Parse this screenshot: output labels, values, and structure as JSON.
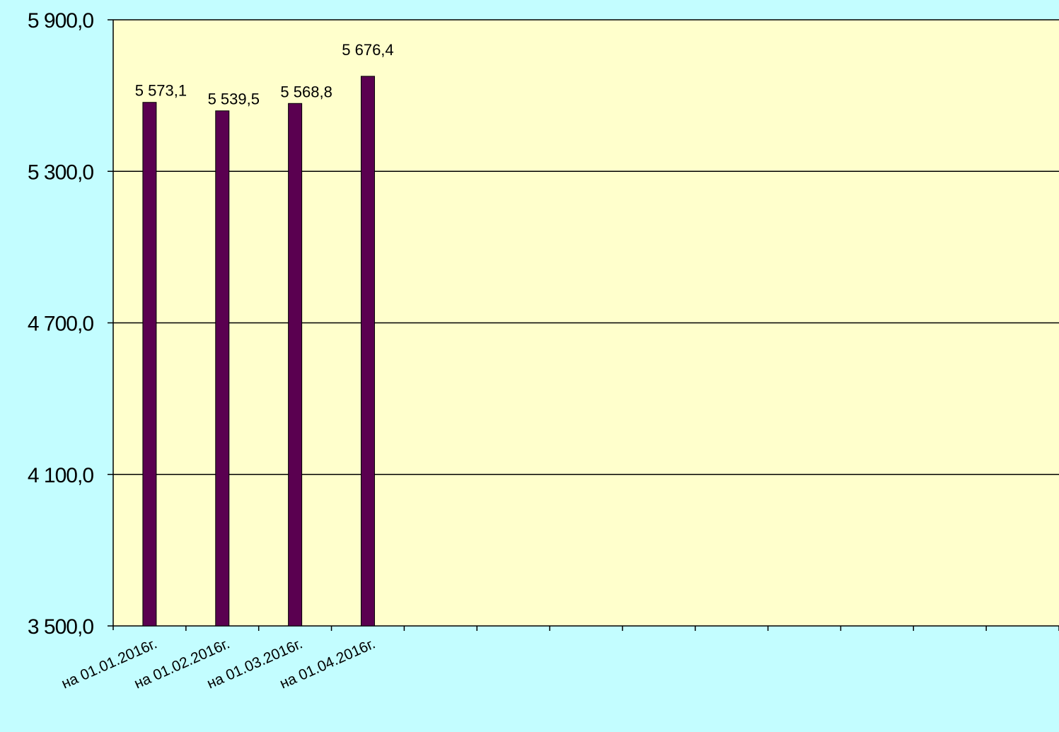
{
  "chart_data": {
    "type": "bar",
    "title": "",
    "xlabel": "",
    "ylabel": "",
    "categories": [
      "на 01.01.2016г.",
      "на 01.02.2016г.",
      "на 01.03.2016г.",
      "на 01.04.2016г."
    ],
    "values": [
      5573.1,
      5539.5,
      5568.8,
      5676.4
    ],
    "value_labels": [
      "5 573,1",
      "5 539,5",
      "5 568,8",
      "5 676,4"
    ],
    "empty_category_slots": 9,
    "ylim": [
      3500,
      5900
    ],
    "yticks": [
      3500,
      4100,
      4700,
      5300,
      5900
    ],
    "ytick_labels": [
      "3 500,0",
      "4 100,0",
      "4 700,0",
      "5 300,0",
      "5 900,0"
    ],
    "grid": "horizontal",
    "legend": "none",
    "colors": {
      "page_background": "#c3fdff",
      "plot_background": "#ffffcc",
      "bar_fill": "#5a0050",
      "bar_stroke": "#000000",
      "gridline": "#000000"
    }
  }
}
